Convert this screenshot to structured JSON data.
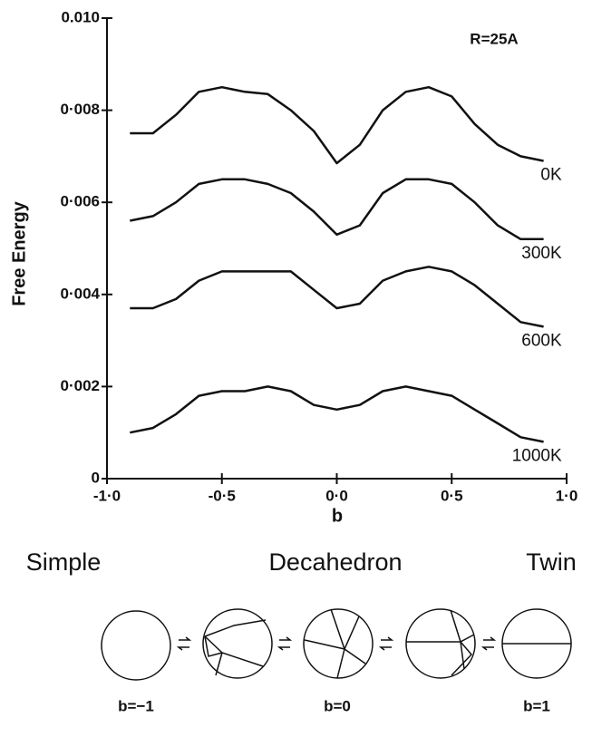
{
  "chart_data": {
    "type": "line",
    "annotation": "R=25A",
    "x_label": "b",
    "y_label": "Free Energy",
    "x": [
      -0.9,
      -0.8,
      -0.7,
      -0.6,
      -0.5,
      -0.4,
      -0.3,
      -0.2,
      -0.1,
      0,
      0.1,
      0.2,
      0.3,
      0.4,
      0.5,
      0.6,
      0.7,
      0.8,
      0.9
    ],
    "series": [
      {
        "name": "0K",
        "color": "#111111",
        "values": [
          0.0075,
          0.0075,
          0.0079,
          0.0084,
          0.0085,
          0.0084,
          0.00835,
          0.008,
          0.00755,
          0.00685,
          0.00725,
          0.008,
          0.0084,
          0.0085,
          0.0083,
          0.0077,
          0.00725,
          0.007,
          0.0069
        ]
      },
      {
        "name": "300K",
        "color": "#111111",
        "values": [
          0.0056,
          0.0057,
          0.006,
          0.0064,
          0.0065,
          0.0065,
          0.0064,
          0.0062,
          0.0058,
          0.0053,
          0.0055,
          0.0062,
          0.0065,
          0.0065,
          0.0064,
          0.006,
          0.0055,
          0.0052,
          0.0052
        ]
      },
      {
        "name": "600K",
        "color": "#111111",
        "values": [
          0.0037,
          0.0037,
          0.0039,
          0.0043,
          0.0045,
          0.0045,
          0.0045,
          0.0045,
          0.0041,
          0.0037,
          0.0038,
          0.0043,
          0.0045,
          0.0046,
          0.0045,
          0.0042,
          0.0038,
          0.0034,
          0.0033
        ]
      },
      {
        "name": "1000K",
        "color": "#111111",
        "values": [
          0.001,
          0.0011,
          0.0014,
          0.0018,
          0.0019,
          0.0019,
          0.002,
          0.0019,
          0.0016,
          0.0015,
          0.0016,
          0.0019,
          0.002,
          0.0019,
          0.0018,
          0.0015,
          0.0012,
          0.0009,
          0.0008
        ]
      }
    ],
    "xlim": [
      -1,
      1
    ],
    "xticks": [
      {
        "value": -1,
        "label": "-1·0"
      },
      {
        "value": -0.5,
        "label": "-0·5"
      },
      {
        "value": 0,
        "label": "0·0"
      },
      {
        "value": 0.5,
        "label": "0·5"
      },
      {
        "value": 1,
        "label": "1·0"
      }
    ],
    "ylim": [
      0,
      0.01
    ],
    "yticks": [
      0,
      {
        "value": 0.002,
        "label": "0·002"
      },
      {
        "value": 0.004,
        "label": "0·004"
      },
      {
        "value": 0.006,
        "label": "0·006"
      },
      {
        "value": 0.008,
        "label": "0·008"
      },
      {
        "value": 0.01,
        "label": "0.010"
      }
    ],
    "structures": [
      "Simple",
      "Decahedron",
      "Twin"
    ],
    "structure_b": [
      "b=−1",
      "b=0",
      "b=1"
    ]
  }
}
